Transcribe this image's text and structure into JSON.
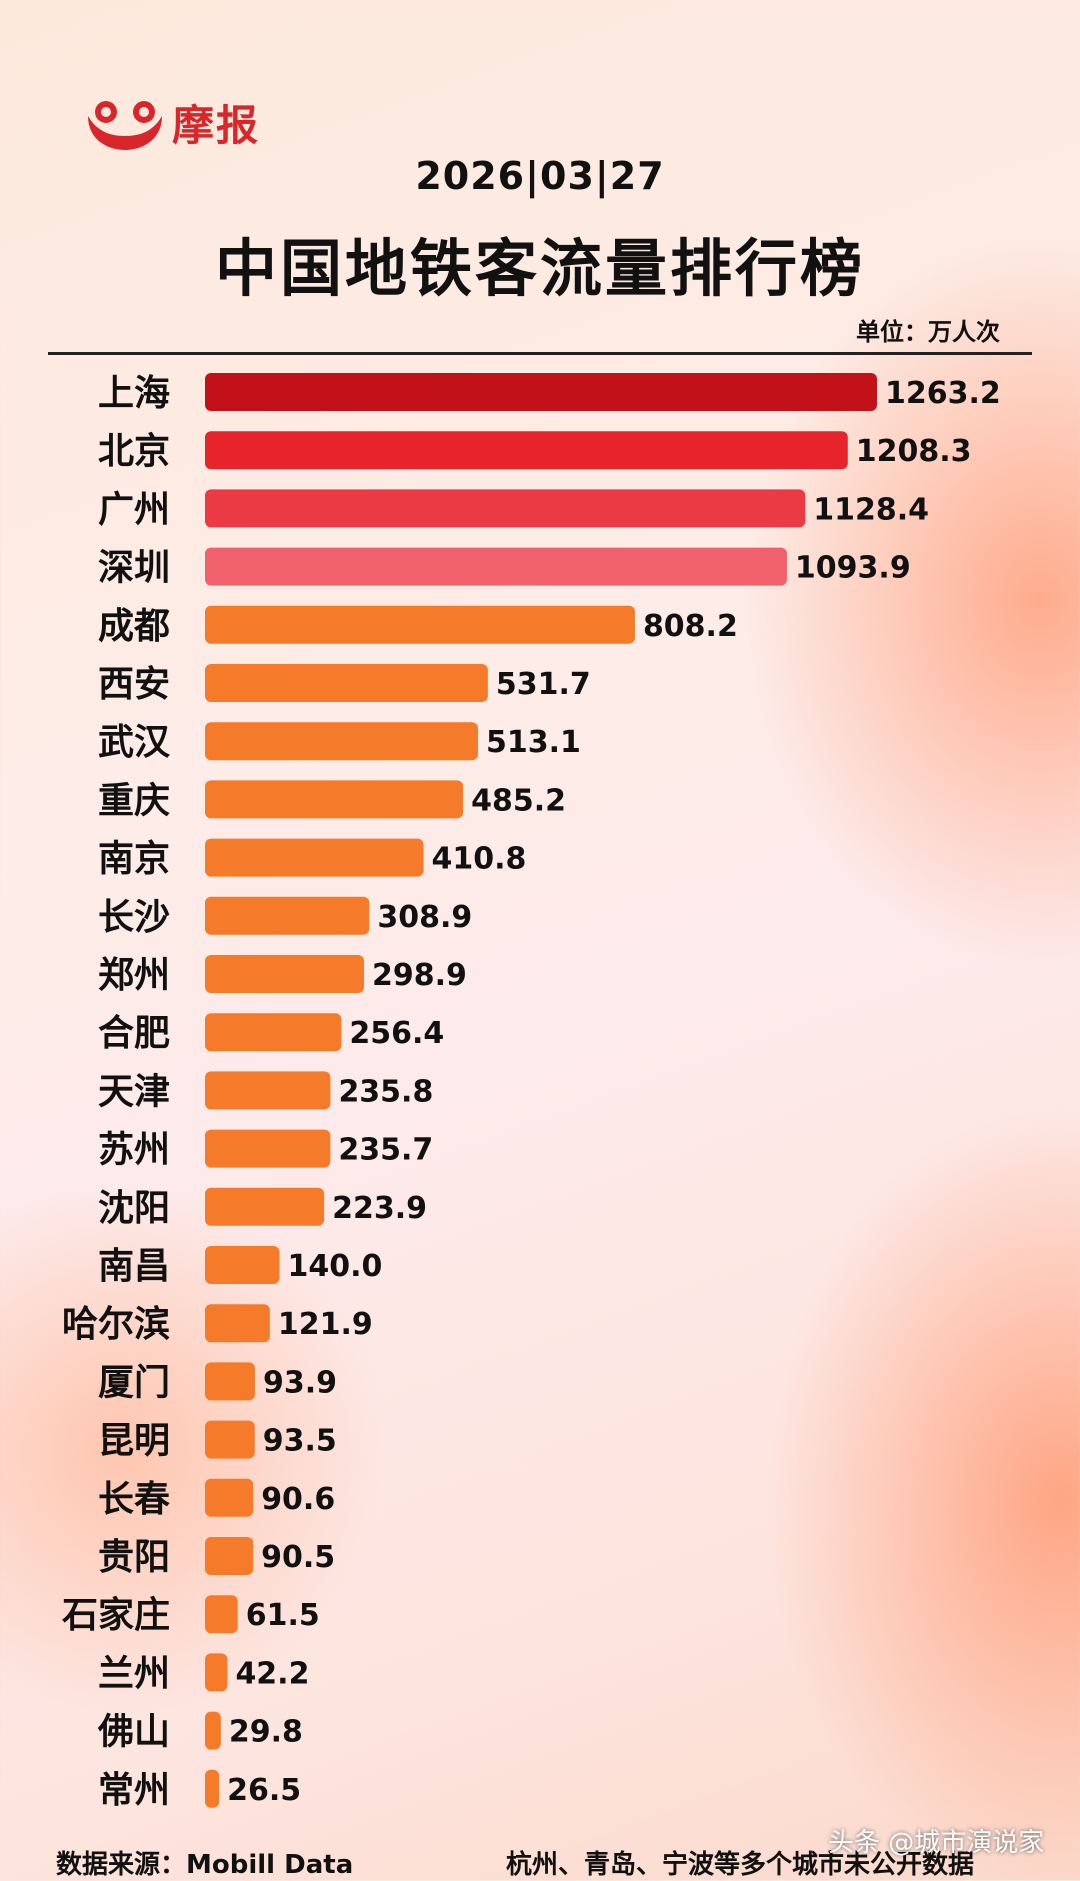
{
  "brand": {
    "name": "摩报",
    "color": "#d8262b"
  },
  "header": {
    "date": "2026|03|27",
    "title": "中国地铁客流量排行榜",
    "unit": "单位：万人次"
  },
  "footer": {
    "source": "数据来源：Mobill Data",
    "note": "杭州、青岛、宁波等多个城市未公开数据",
    "platform": "头条 @城市演说家"
  },
  "chart_data": {
    "type": "bar",
    "orientation": "horizontal",
    "title": "中国地铁客流量排行榜",
    "unit": "万人次",
    "categories": [
      "上海",
      "北京",
      "广州",
      "深圳",
      "成都",
      "西安",
      "武汉",
      "重庆",
      "南京",
      "长沙",
      "郑州",
      "合肥",
      "天津",
      "苏州",
      "沈阳",
      "南昌",
      "哈尔滨",
      "厦门",
      "昆明",
      "长春",
      "贵阳",
      "石家庄",
      "兰州",
      "佛山",
      "常州"
    ],
    "values": [
      1263.2,
      1208.3,
      1128.4,
      1093.9,
      808.2,
      531.7,
      513.1,
      485.2,
      410.8,
      308.9,
      298.9,
      256.4,
      235.8,
      235.7,
      223.9,
      140.0,
      121.9,
      93.9,
      93.5,
      90.6,
      90.5,
      61.5,
      42.2,
      29.8,
      26.5
    ],
    "value_labels": [
      "1263.2",
      "1208.3",
      "1128.4",
      "1093.9",
      "808.2",
      "531.7",
      "513.1",
      "485.2",
      "410.8",
      "308.9",
      "298.9",
      "256.4",
      "235.8",
      "235.7",
      "223.9",
      "140.0",
      "121.9",
      "93.9",
      "93.5",
      "90.6",
      "90.5",
      "61.5",
      "42.2",
      "29.8",
      "26.5"
    ],
    "bar_colors": [
      "#c3111a",
      "#e7232b",
      "#ec3a44",
      "#f0616b",
      "#f57a2a",
      "#f57a2a",
      "#f57a2a",
      "#f57a2a",
      "#f57a2a",
      "#f57a2a",
      "#f57a2a",
      "#f57a2a",
      "#f57a2a",
      "#f57a2a",
      "#f57a2a",
      "#f57a2a",
      "#f57a2a",
      "#f57a2a",
      "#f57a2a",
      "#f57a2a",
      "#f57a2a",
      "#f57a2a",
      "#f57a2a",
      "#f57a2a",
      "#f57a2a"
    ],
    "grid": false,
    "legend": "none"
  }
}
